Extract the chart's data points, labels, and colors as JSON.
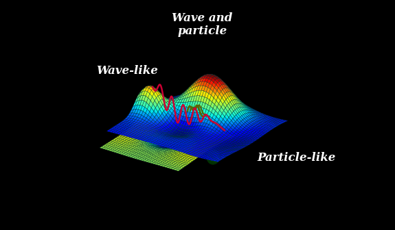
{
  "background_color": "#000000",
  "label_wave_like": "Wave-like",
  "label_wave_particle": "Wave and\nparticle",
  "label_particle_like": "Particle-like",
  "label_color": "#ffffff",
  "label_fontsize": 12,
  "wave_color": "#cc0033",
  "wave_linewidth": 1.8,
  "figsize": [
    5.75,
    3.36
  ],
  "dpi": 100,
  "elev": 22,
  "azim": -55
}
